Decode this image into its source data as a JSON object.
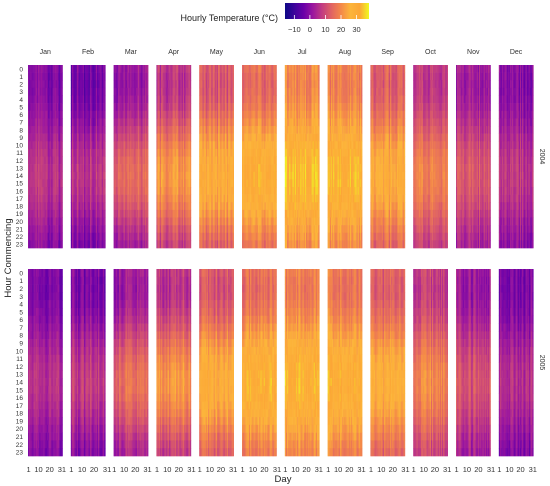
{
  "chart_data": {
    "type": "heatmap",
    "title": "",
    "legend": {
      "title": "Hourly Temperature (°C)",
      "position": "top",
      "ticks": [
        -10,
        0,
        10,
        20,
        30
      ],
      "tick_labels": [
        "−10",
        "0",
        "10",
        "20",
        "30"
      ],
      "range": [
        -16,
        38
      ],
      "colormap": [
        "#0d0887",
        "#3c049b",
        "#6a00a8",
        "#9c179e",
        "#c33d80",
        "#e16462",
        "#f48849",
        "#fcb53a",
        "#fca636",
        "#f0f921"
      ]
    },
    "xlabel": "Day",
    "ylabel": "Hour Commencing",
    "months": [
      "Jan",
      "Feb",
      "Mar",
      "Apr",
      "May",
      "Jun",
      "Jul",
      "Aug",
      "Sep",
      "Oct",
      "Nov",
      "Dec"
    ],
    "years": [
      "2004",
      "2005"
    ],
    "hours": [
      "0",
      "1",
      "2",
      "3",
      "4",
      "5",
      "6",
      "7",
      "8",
      "9",
      "10",
      "11",
      "12",
      "13",
      "14",
      "15",
      "16",
      "17",
      "18",
      "19",
      "20",
      "21",
      "22",
      "23"
    ],
    "day_ticks": [
      1,
      10,
      20,
      31
    ],
    "day_tick_labels": [
      "1",
      "10",
      "20",
      "31"
    ],
    "approx_monthly_mean_temp_c": {
      "2004": [
        2,
        2,
        8,
        14,
        19,
        23,
        26,
        25,
        20,
        13,
        7,
        3
      ],
      "2005": [
        2,
        3,
        9,
        14,
        19,
        23,
        25,
        24,
        20,
        14,
        7,
        2
      ]
    },
    "approx_diurnal_amplitude_c": [
      4,
      5,
      7,
      8,
      8,
      8,
      7,
      7,
      7,
      6,
      5,
      4
    ],
    "grid": false
  }
}
